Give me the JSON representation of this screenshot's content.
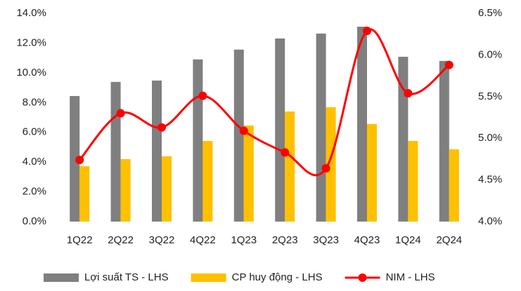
{
  "chart_data": {
    "type": "bar-line",
    "categories": [
      "1Q22",
      "2Q22",
      "3Q22",
      "4Q22",
      "1Q23",
      "2Q23",
      "3Q23",
      "4Q23",
      "1Q24",
      "2Q24"
    ],
    "series": [
      {
        "name": "Lợi suất TS - LHS",
        "type": "bar",
        "color": "#7f7f7f",
        "values": [
          8.44,
          9.39,
          9.48,
          10.9,
          11.56,
          12.31,
          12.64,
          13.1,
          11.08,
          10.8
        ]
      },
      {
        "name": "CP huy động - LHS",
        "type": "bar",
        "color": "#ffc000",
        "values": [
          3.73,
          4.2,
          4.39,
          5.42,
          6.46,
          7.4,
          7.69,
          6.56,
          5.42,
          4.86
        ]
      },
      {
        "name": "NIM - LHS",
        "type": "line",
        "axis": "y2",
        "color": "#ff0000",
        "values": [
          4.74,
          5.3,
          5.13,
          5.51,
          5.09,
          4.83,
          4.64,
          6.29,
          5.54,
          5.88
        ]
      }
    ],
    "ylim": [
      0,
      14
    ],
    "yticks": [
      {
        "value": 0,
        "label": "0.0%"
      },
      {
        "value": 2,
        "label": "2.0%"
      },
      {
        "value": 4,
        "label": "4.0%"
      },
      {
        "value": 6,
        "label": "6.0%"
      },
      {
        "value": 8,
        "label": "8.0%"
      },
      {
        "value": 10,
        "label": "10.0%"
      },
      {
        "value": 12,
        "label": "12.0%"
      },
      {
        "value": 14,
        "label": "14.0%"
      }
    ],
    "y2lim": [
      4,
      6.5
    ],
    "y2ticks": [
      {
        "value": 4,
        "label": "4.0%"
      },
      {
        "value": 4.5,
        "label": "4.5%"
      },
      {
        "value": 5,
        "label": "5.0%"
      },
      {
        "value": 5.5,
        "label": "5.5%"
      },
      {
        "value": 6,
        "label": "6.0%"
      },
      {
        "value": 6.5,
        "label": "6.5%"
      }
    ],
    "legend": "bottom"
  }
}
